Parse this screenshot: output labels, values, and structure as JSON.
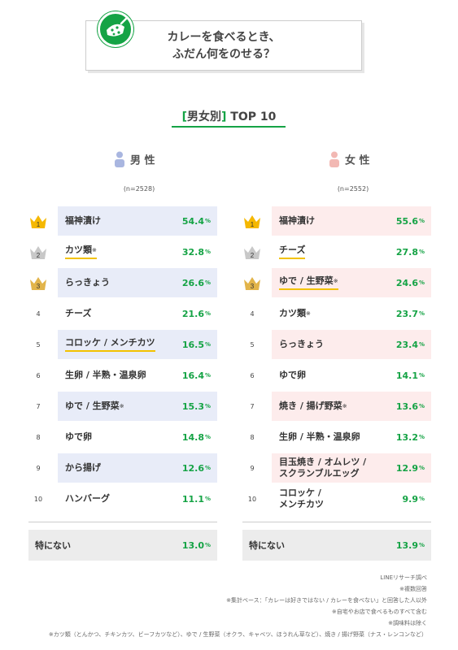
{
  "title": {
    "line1": "カレーを食べるとき、",
    "line2": "ふだん何をのせる？"
  },
  "subtitle": {
    "open": "[",
    "text": "男女別",
    "close": "]",
    "rest": " TOP 10"
  },
  "colors": {
    "accent": "#15a345",
    "male_bg": "#e8ecf8",
    "female_bg": "#fdecec",
    "male_icon": "#a9b6e0",
    "female_icon": "#f2b8b3",
    "underline": "#f2c200",
    "gold": "#f5b800",
    "silver": "#c8c8c8",
    "bronze": "#e2b44a"
  },
  "male": {
    "label": "男 性",
    "n": "(n=2528)"
  },
  "female": {
    "label": "女 性",
    "n": "(n=2552)"
  },
  "chart_data": {
    "type": "table",
    "unit": "%",
    "series": [
      {
        "name": "男 性",
        "n": "(n=2528)",
        "rows": [
          {
            "rank": "1",
            "item": "福神漬け",
            "value": "54.4",
            "highlight": true,
            "underline": false,
            "note": ""
          },
          {
            "rank": "2",
            "item": "カツ類",
            "value": "32.8",
            "highlight": false,
            "underline": true,
            "note": "※"
          },
          {
            "rank": "3",
            "item": "らっきょう",
            "value": "26.6",
            "highlight": true,
            "underline": false,
            "note": ""
          },
          {
            "rank": "4",
            "item": "チーズ",
            "value": "21.6",
            "highlight": false,
            "underline": false,
            "note": ""
          },
          {
            "rank": "5",
            "item": "コロッケ / メンチカツ",
            "value": "16.5",
            "highlight": true,
            "underline": true,
            "note": ""
          },
          {
            "rank": "6",
            "item": "生卵 / 半熟・温泉卵",
            "value": "16.4",
            "highlight": false,
            "underline": false,
            "note": ""
          },
          {
            "rank": "7",
            "item": "ゆで / 生野菜",
            "value": "15.3",
            "highlight": true,
            "underline": false,
            "note": "※"
          },
          {
            "rank": "8",
            "item": "ゆで卵",
            "value": "14.8",
            "highlight": false,
            "underline": false,
            "note": ""
          },
          {
            "rank": "9",
            "item": "から揚げ",
            "value": "12.6",
            "highlight": true,
            "underline": false,
            "note": ""
          },
          {
            "rank": "10",
            "item": "ハンバーグ",
            "value": "11.1",
            "highlight": false,
            "underline": false,
            "note": ""
          }
        ],
        "none": {
          "label": "特にない",
          "value": "13.0"
        }
      },
      {
        "name": "女 性",
        "n": "(n=2552)",
        "rows": [
          {
            "rank": "1",
            "item": "福神漬け",
            "value": "55.6",
            "highlight": true,
            "underline": false,
            "note": ""
          },
          {
            "rank": "2",
            "item": "チーズ",
            "value": "27.8",
            "highlight": false,
            "underline": true,
            "note": ""
          },
          {
            "rank": "3",
            "item": "ゆで / 生野菜",
            "value": "24.6",
            "highlight": true,
            "underline": true,
            "note": "※"
          },
          {
            "rank": "4",
            "item": "カツ類",
            "value": "23.7",
            "highlight": false,
            "underline": false,
            "note": "※"
          },
          {
            "rank": "5",
            "item": "らっきょう",
            "value": "23.4",
            "highlight": true,
            "underline": false,
            "note": ""
          },
          {
            "rank": "6",
            "item": "ゆで卵",
            "value": "14.1",
            "highlight": false,
            "underline": false,
            "note": ""
          },
          {
            "rank": "7",
            "item": "焼き / 揚げ野菜",
            "value": "13.6",
            "highlight": true,
            "underline": false,
            "note": "※"
          },
          {
            "rank": "8",
            "item": "生卵 / 半熟・温泉卵",
            "value": "13.2",
            "highlight": false,
            "underline": false,
            "note": ""
          },
          {
            "rank": "9",
            "item": "目玉焼き / オムレツ / スクランブルエッグ",
            "lines": [
              "目玉焼き / オムレツ /",
              "スクランブルエッグ"
            ],
            "value": "12.9",
            "highlight": true,
            "underline": false,
            "note": ""
          },
          {
            "rank": "10",
            "item": "コロッケ / メンチカツ",
            "lines": [
              "コロッケ /",
              "メンチカツ"
            ],
            "value": "9.9",
            "highlight": false,
            "underline": false,
            "note": ""
          }
        ],
        "none": {
          "label": "特にない",
          "value": "13.9"
        }
      }
    ]
  },
  "notes": [
    "LINEリサーチ調べ",
    "※複数回答",
    "※集計ベース：「カレーは好きではない / カレーを食べない」と回答した人以外",
    "※自宅やお店で食べるものすべて含む",
    "※調味料は除く",
    "※カツ類（とんかつ、チキンカツ、ビーフカツなど）、ゆで / 生野菜（オクラ、キャベツ、ほうれん草など）、焼き / 揚げ野菜（ナス・レンコンなど）"
  ]
}
